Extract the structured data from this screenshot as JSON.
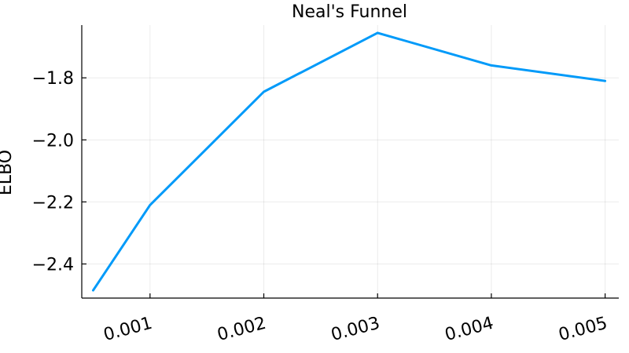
{
  "chart_data": {
    "type": "line",
    "title": "Neal's Funnel",
    "xlabel": "",
    "ylabel": "ELBO",
    "x_ticks": [
      0.001,
      0.002,
      0.003,
      0.004,
      0.005
    ],
    "x_tick_labels": [
      "0.001",
      "0.002",
      "0.003",
      "0.004",
      "0.005"
    ],
    "y_ticks": [
      -2.4,
      -2.2,
      -2.0,
      -1.8
    ],
    "y_tick_labels": [
      "−2.4",
      "−2.2",
      "−2.0",
      "−1.8"
    ],
    "xlim": [
      0.0004,
      0.00512
    ],
    "ylim": [
      -2.51,
      -1.63
    ],
    "grid": true,
    "series": [
      {
        "color": "#009AF9",
        "x": [
          0.0005,
          0.001,
          0.002,
          0.003,
          0.004,
          0.005
        ],
        "y": [
          -2.485,
          -2.21,
          -1.845,
          -1.655,
          -1.76,
          -1.81
        ]
      }
    ]
  }
}
